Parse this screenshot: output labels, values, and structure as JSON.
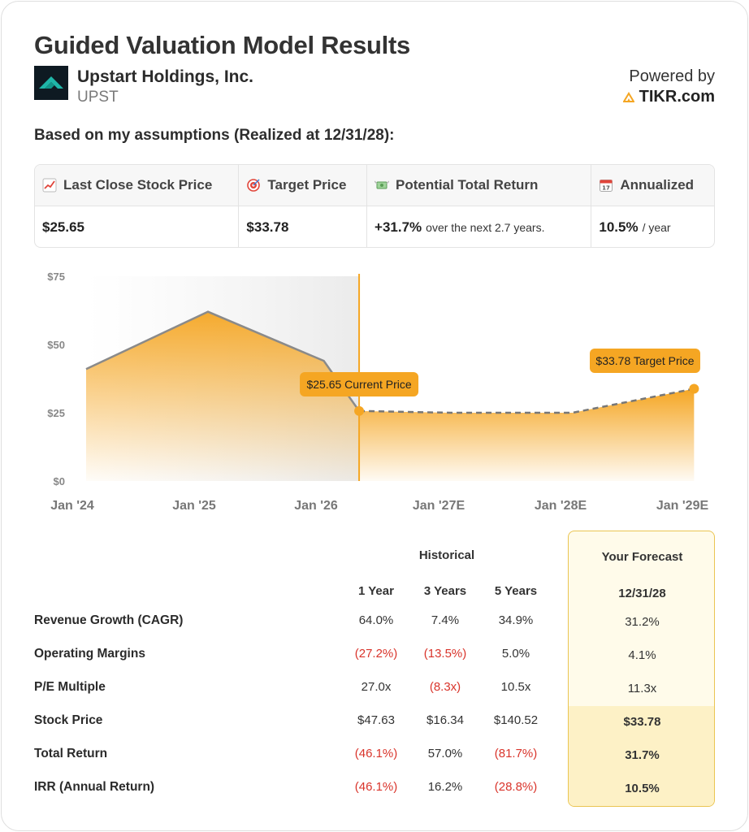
{
  "page": {
    "title": "Guided Valuation Model Results",
    "company": "Upstart Holdings, Inc.",
    "ticker": "UPST",
    "powered_by": "Powered by",
    "brand": "TIKR.com",
    "assumptions": "Based on my assumptions (Realized at 12/31/28):"
  },
  "metrics": [
    {
      "label": "Last Close Stock Price",
      "icon": "chart-up-icon",
      "value": "$25.65",
      "sub": ""
    },
    {
      "label": "Target Price",
      "icon": "target-icon",
      "value": "$33.78",
      "sub": ""
    },
    {
      "label": "Potential Total Return",
      "icon": "money-wings-icon",
      "value": "+31.7%",
      "sub": "over the next 2.7 years."
    },
    {
      "label": "Annualized",
      "icon": "calendar-icon",
      "value": "10.5%",
      "sub": "/ year"
    }
  ],
  "chart_data": {
    "type": "area",
    "y_ticks": [
      "$75",
      "$50",
      "$25",
      "$0"
    ],
    "ylim": [
      0,
      75
    ],
    "x_ticks": [
      "Jan '24",
      "Jan '25",
      "Jan '26",
      "Jan '27E",
      "Jan '28E",
      "Jan '29E"
    ],
    "historical": {
      "x": [
        "2024-01-01",
        "2025-01-01",
        "2025-12-15",
        "2026-03-31"
      ],
      "y": [
        41,
        62,
        44,
        25.65
      ]
    },
    "forecast": {
      "x": [
        "2026-03-31",
        "2027-01-01",
        "2028-01-01",
        "2028-12-31"
      ],
      "y": [
        25.65,
        25,
        25,
        33.78
      ]
    },
    "current_label": "$25.65 Current Price",
    "target_label": "$33.78 Target Price",
    "colors": {
      "fill": "#f5a623",
      "line": "#888888",
      "marker": "#f5a623",
      "divider": "#f5a623"
    }
  },
  "table": {
    "historical_header": "Historical",
    "forecast_header": "Your Forecast",
    "columns": [
      "1 Year",
      "3 Years",
      "5 Years"
    ],
    "forecast_date": "12/31/28",
    "rows": [
      {
        "label": "Revenue Growth (CAGR)",
        "values": [
          "64.0%",
          "7.4%",
          "34.9%"
        ],
        "neg": [
          false,
          false,
          false
        ],
        "forecast": "31.2%"
      },
      {
        "label": "Operating Margins",
        "values": [
          "(27.2%)",
          "(13.5%)",
          "5.0%"
        ],
        "neg": [
          true,
          true,
          false
        ],
        "forecast": "4.1%"
      },
      {
        "label": "P/E Multiple",
        "values": [
          "27.0x",
          "(8.3x)",
          "10.5x"
        ],
        "neg": [
          false,
          true,
          false
        ],
        "forecast": "11.3x"
      },
      {
        "label": "Stock Price",
        "values": [
          "$47.63",
          "$16.34",
          "$140.52"
        ],
        "neg": [
          false,
          false,
          false
        ],
        "forecast": "$33.78"
      },
      {
        "label": "Total Return",
        "values": [
          "(46.1%)",
          "57.0%",
          "(81.7%)"
        ],
        "neg": [
          true,
          false,
          true
        ],
        "forecast": "31.7%"
      },
      {
        "label": "IRR (Annual Return)",
        "values": [
          "(46.1%)",
          "16.2%",
          "(28.8%)"
        ],
        "neg": [
          true,
          false,
          true
        ],
        "forecast": "10.5%"
      }
    ]
  }
}
